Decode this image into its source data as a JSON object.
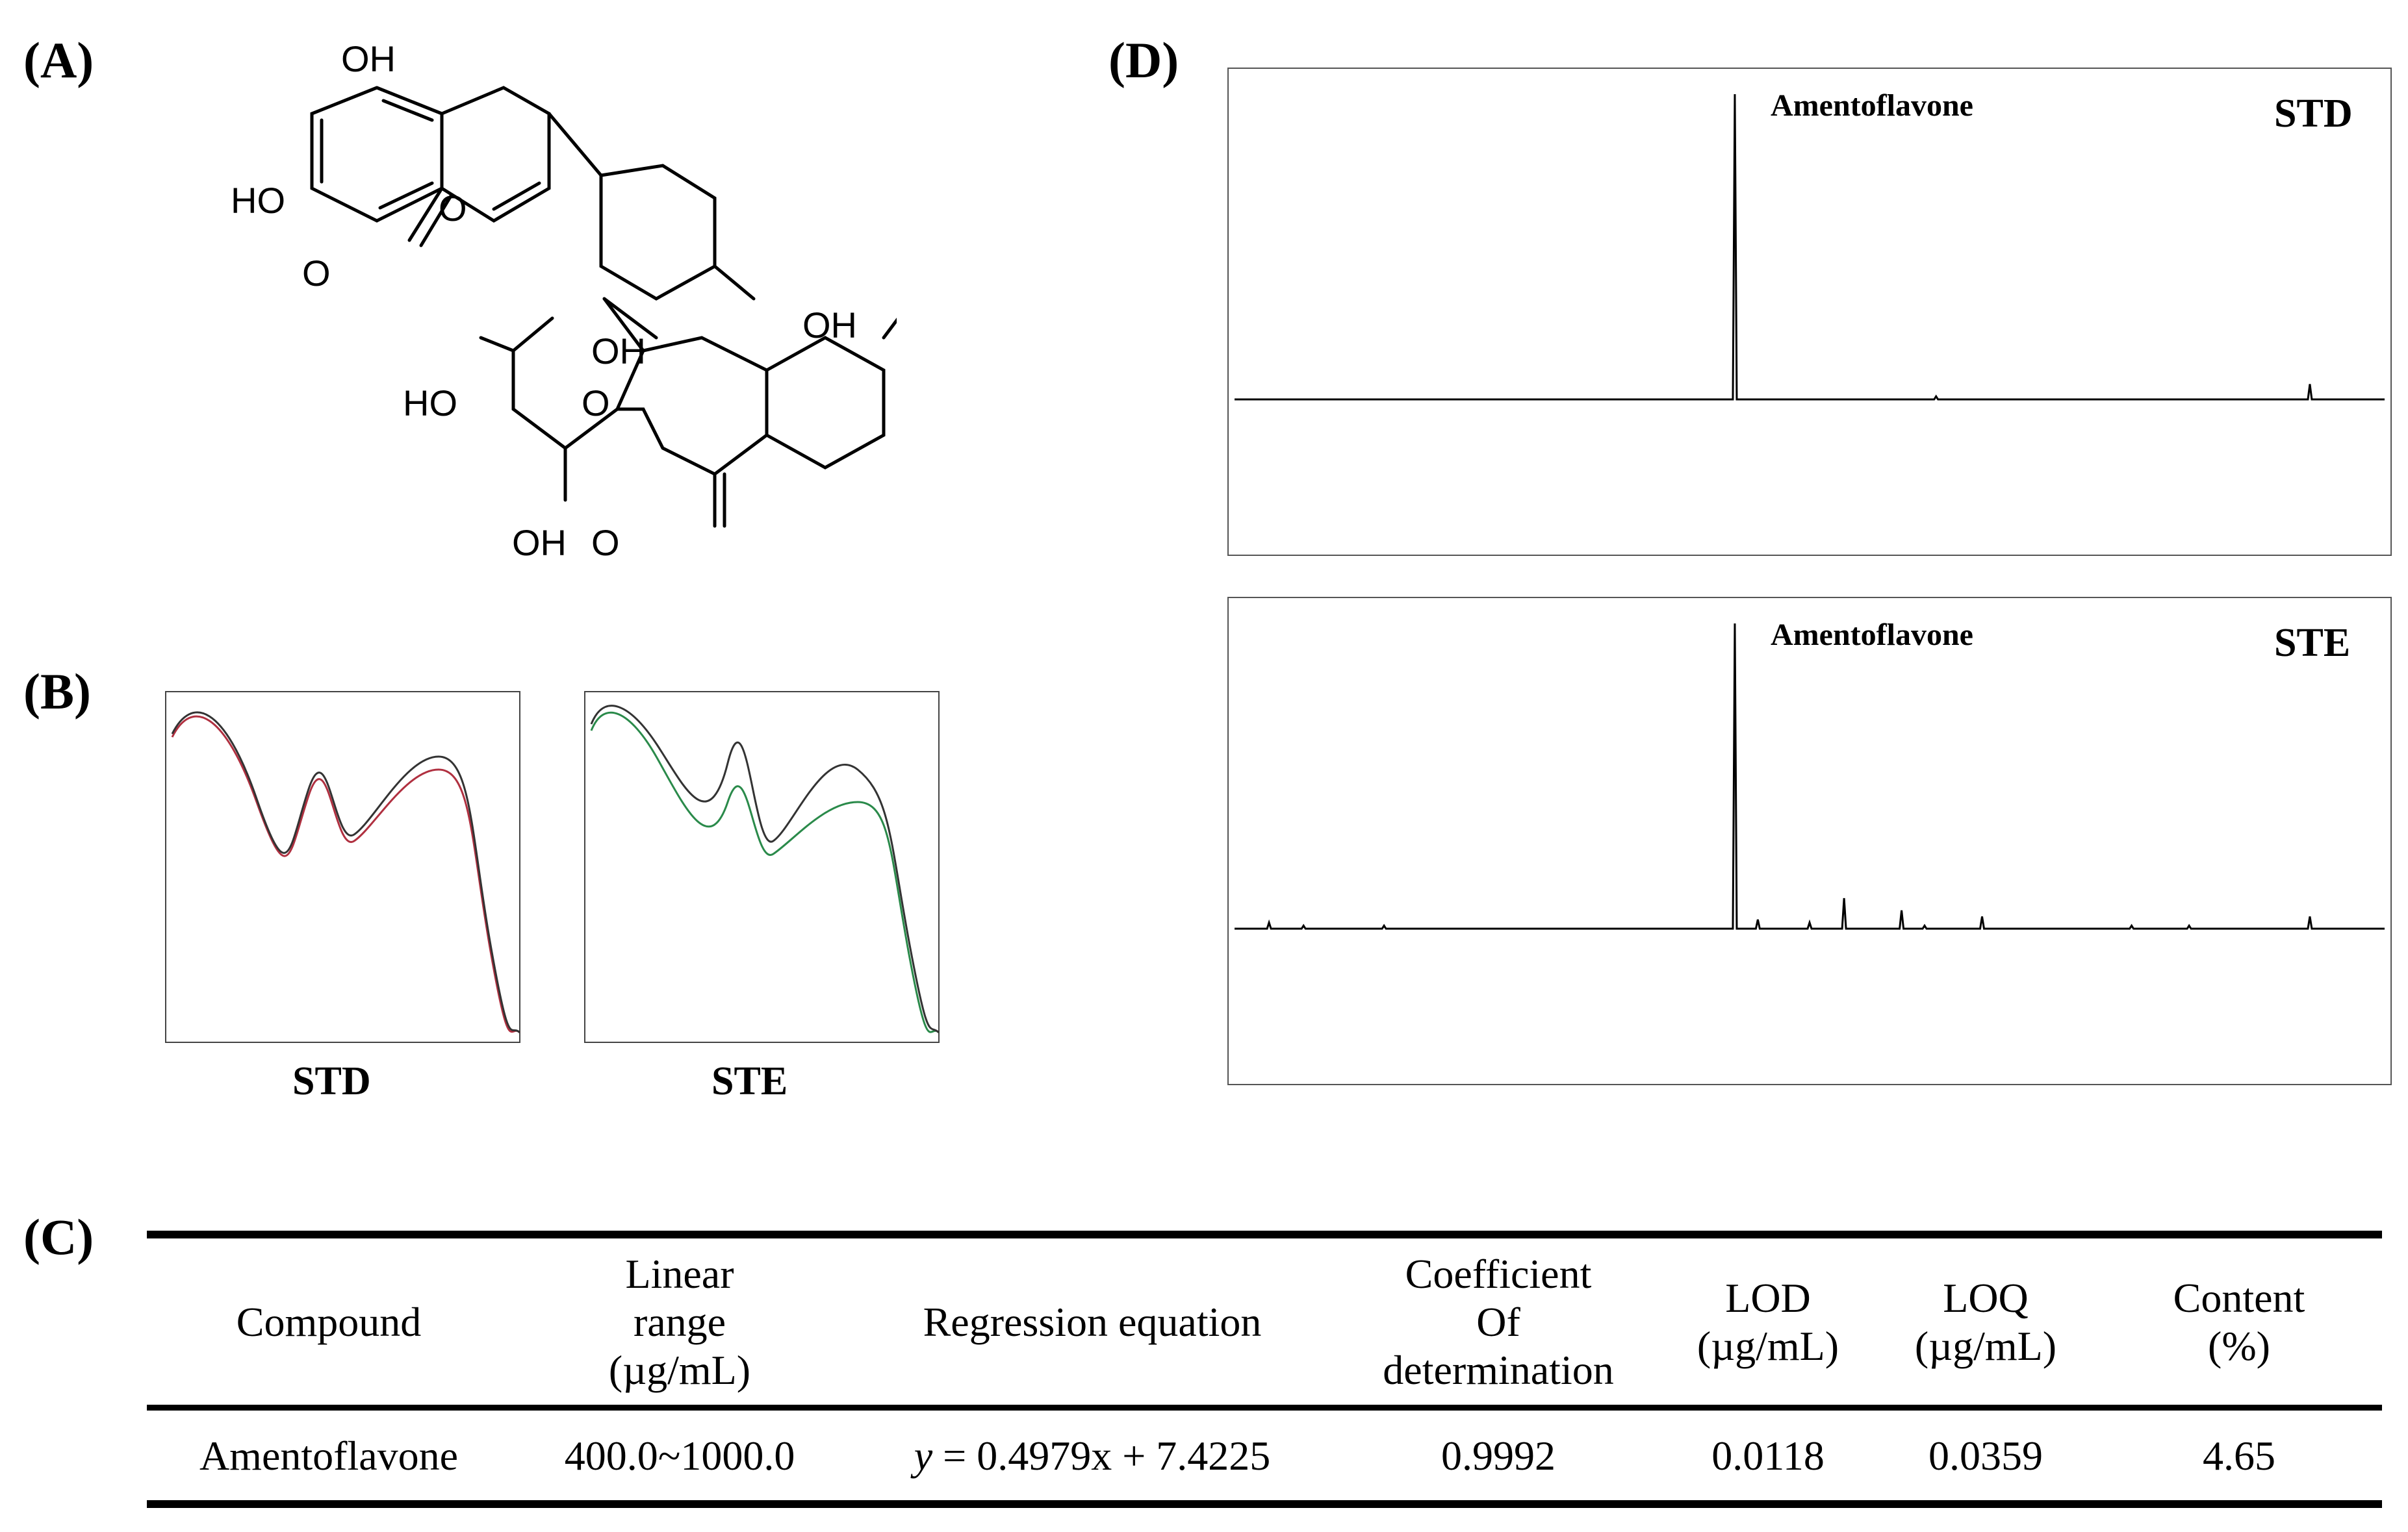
{
  "panels": {
    "a": "(A)",
    "b": "(B)",
    "c": "(C)",
    "d": "(D)"
  },
  "structure": {
    "labels": [
      "OH",
      "HO",
      "O",
      "O",
      "OH",
      "OH",
      "HO",
      "O",
      "OH",
      "O"
    ]
  },
  "uv": {
    "captions": [
      "STD",
      "STE"
    ]
  },
  "hplc": {
    "compound": "Amentoflavone",
    "traces": [
      {
        "tag": "STD",
        "main_peak_time": 43.5,
        "main_peak_height": 1.0,
        "minor_peaks": [
          {
            "t": 61.0,
            "h": 0.01
          },
          {
            "t": 93.5,
            "h": 0.05
          }
        ]
      },
      {
        "tag": "STE",
        "main_peak_time": 43.5,
        "main_peak_height": 1.0,
        "minor_peaks": [
          {
            "t": 3.0,
            "h": 0.02
          },
          {
            "t": 6.0,
            "h": 0.01
          },
          {
            "t": 13.0,
            "h": 0.01
          },
          {
            "t": 45.5,
            "h": 0.03
          },
          {
            "t": 50.0,
            "h": 0.02
          },
          {
            "t": 53.0,
            "h": 0.1
          },
          {
            "t": 58.0,
            "h": 0.06
          },
          {
            "t": 60.0,
            "h": 0.01
          },
          {
            "t": 65.0,
            "h": 0.04
          },
          {
            "t": 78.0,
            "h": 0.01
          },
          {
            "t": 83.0,
            "h": 0.01
          },
          {
            "t": 93.5,
            "h": 0.04
          }
        ]
      }
    ]
  },
  "table": {
    "headers": [
      [
        "Compound"
      ],
      [
        "Linear",
        "range",
        "(µg/mL)"
      ],
      [
        "Regression equation"
      ],
      [
        "Coefficient",
        "Of",
        "determination"
      ],
      [
        "LOD",
        "(µg/mL)"
      ],
      [
        "LOQ",
        "(µg/mL)"
      ],
      [
        "Content",
        "(%)"
      ]
    ],
    "row": {
      "compound": "Amentoflavone",
      "linear_range": "400.0~1000.0",
      "eq_var": "y",
      "eq_rest": " = 0.4979x + 7.4225",
      "r2": "0.9992",
      "lod": "0.0118",
      "loq": "0.0359",
      "content": "4.65"
    }
  },
  "colors": {
    "ink": "#000000",
    "trace_red": "#b03040",
    "trace_green": "#2a8a4a"
  }
}
